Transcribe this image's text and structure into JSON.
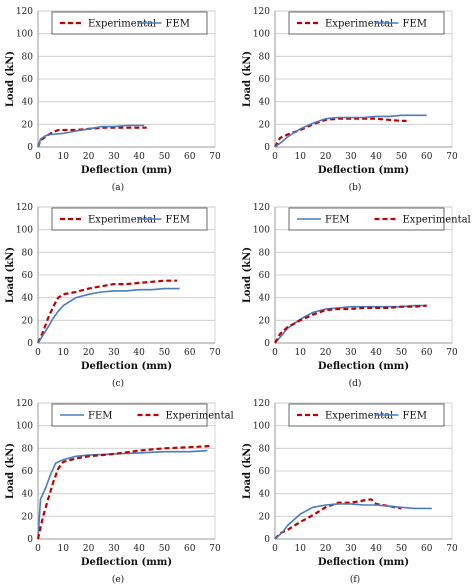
{
  "chart_data": [
    {
      "type": "line",
      "panel_label": "(a)",
      "xlabel": "Deflection  (mm)",
      "ylabel": "Load (kN)",
      "xlim": [
        0,
        70
      ],
      "ylim": [
        0,
        120
      ],
      "xticks": [
        0,
        10,
        20,
        30,
        40,
        50,
        60,
        70
      ],
      "yticks": [
        0,
        20,
        40,
        60,
        80,
        100,
        120
      ],
      "grid": "horizontal",
      "legend": "top",
      "series": [
        {
          "name": "Experimental",
          "style": "dashed",
          "color": "#c00000",
          "x": [
            0,
            1,
            3,
            5,
            8,
            10,
            15,
            20,
            25,
            30,
            35,
            40,
            43
          ],
          "y": [
            0,
            6,
            9,
            12,
            15,
            15,
            15,
            16,
            17,
            17,
            17,
            17,
            17
          ]
        },
        {
          "name": "FEM",
          "style": "solid",
          "color": "#4a7cc0",
          "x": [
            0,
            1,
            3,
            5,
            10,
            15,
            20,
            25,
            30,
            35,
            40,
            42
          ],
          "y": [
            0,
            7,
            10,
            11,
            12,
            14,
            16,
            18,
            18,
            19,
            19,
            19
          ]
        }
      ]
    },
    {
      "type": "line",
      "panel_label": "(b)",
      "xlabel": "Deflection  (mm)",
      "ylabel": "Load (kN)",
      "xlim": [
        0,
        70
      ],
      "ylim": [
        0,
        120
      ],
      "xticks": [
        0,
        10,
        20,
        30,
        40,
        50,
        60,
        70
      ],
      "yticks": [
        0,
        20,
        40,
        60,
        80,
        100,
        120
      ],
      "grid": "horizontal",
      "legend": "top",
      "series": [
        {
          "name": "Experimental",
          "style": "dashed",
          "color": "#c00000",
          "x": [
            0,
            2,
            5,
            10,
            15,
            20,
            25,
            30,
            35,
            40,
            45,
            50,
            52
          ],
          "y": [
            0,
            8,
            11,
            15,
            20,
            24,
            25,
            25,
            25,
            25,
            24,
            23,
            23
          ]
        },
        {
          "name": "FEM",
          "style": "solid",
          "color": "#4a7cc0",
          "x": [
            0,
            3,
            5,
            10,
            15,
            20,
            25,
            30,
            35,
            40,
            45,
            50,
            55,
            60
          ],
          "y": [
            0,
            5,
            9,
            16,
            21,
            25,
            26,
            26,
            26,
            27,
            27,
            28,
            28,
            28
          ]
        }
      ]
    },
    {
      "type": "line",
      "panel_label": "(c)",
      "xlabel": "Deflection  (mm)",
      "ylabel": "Load (kN)",
      "xlim": [
        0,
        70
      ],
      "ylim": [
        0,
        120
      ],
      "xticks": [
        0,
        10,
        20,
        30,
        40,
        50,
        60,
        70
      ],
      "yticks": [
        0,
        20,
        40,
        60,
        80,
        100,
        120
      ],
      "grid": "horizontal",
      "legend": "top",
      "series": [
        {
          "name": "Experimental",
          "style": "dashed",
          "color": "#c00000",
          "x": [
            0,
            2,
            4,
            6,
            8,
            10,
            15,
            20,
            25,
            30,
            35,
            40,
            45,
            50,
            55
          ],
          "y": [
            0,
            10,
            22,
            32,
            40,
            43,
            45,
            48,
            50,
            52,
            52,
            53,
            54,
            55,
            55
          ]
        },
        {
          "name": "FEM",
          "style": "solid",
          "color": "#4a7cc0",
          "x": [
            0,
            2,
            4,
            6,
            8,
            10,
            15,
            20,
            25,
            30,
            35,
            40,
            45,
            50,
            56
          ],
          "y": [
            0,
            7,
            14,
            22,
            28,
            33,
            40,
            43,
            45,
            46,
            46,
            47,
            47,
            48,
            48
          ]
        }
      ]
    },
    {
      "type": "line",
      "panel_label": "(d)",
      "xlabel": "Deflection  (mm)",
      "ylabel": "Load (kN)",
      "xlim": [
        0,
        70
      ],
      "ylim": [
        0,
        120
      ],
      "xticks": [
        0,
        10,
        20,
        30,
        40,
        50,
        60,
        70
      ],
      "yticks": [
        0,
        20,
        40,
        60,
        80,
        100,
        120
      ],
      "grid": "horizontal",
      "legend": "top",
      "series": [
        {
          "name": "FEM",
          "style": "solid",
          "color": "#4a7cc0",
          "x": [
            0,
            2,
            5,
            10,
            15,
            20,
            25,
            30,
            35,
            40,
            45,
            50,
            55,
            60
          ],
          "y": [
            0,
            5,
            13,
            21,
            27,
            30,
            31,
            32,
            32,
            32,
            32,
            32,
            33,
            33
          ]
        },
        {
          "name": "Experimental",
          "style": "dashed",
          "color": "#c00000",
          "x": [
            0,
            2,
            5,
            10,
            15,
            20,
            25,
            30,
            35,
            40,
            45,
            50,
            55,
            60
          ],
          "y": [
            0,
            8,
            14,
            20,
            25,
            29,
            30,
            30,
            31,
            31,
            31,
            32,
            32,
            33
          ]
        }
      ]
    },
    {
      "type": "line",
      "panel_label": "(e)",
      "xlabel": "Deflection  (mm)",
      "ylabel": "Load (kN)",
      "xlim": [
        0,
        70
      ],
      "ylim": [
        0,
        120
      ],
      "xticks": [
        0,
        10,
        20,
        30,
        40,
        50,
        60,
        70
      ],
      "yticks": [
        0,
        20,
        40,
        60,
        80,
        100,
        120
      ],
      "grid": "horizontal",
      "legend": "top",
      "series": [
        {
          "name": "FEM",
          "style": "solid",
          "color": "#4a7cc0",
          "x": [
            0,
            1,
            3,
            5,
            7,
            10,
            15,
            20,
            30,
            40,
            50,
            60,
            67
          ],
          "y": [
            0,
            35,
            45,
            57,
            67,
            70,
            73,
            74,
            75,
            76,
            77,
            77,
            78
          ]
        },
        {
          "name": "Experimental",
          "style": "dashed",
          "color": "#c00000",
          "x": [
            0,
            1,
            2,
            4,
            6,
            8,
            10,
            15,
            20,
            30,
            40,
            50,
            60,
            68
          ],
          "y": [
            0,
            10,
            20,
            35,
            50,
            62,
            68,
            71,
            73,
            75,
            78,
            80,
            81,
            82
          ]
        }
      ]
    },
    {
      "type": "line",
      "panel_label": "(f)",
      "xlabel": "Deflection  (mm)",
      "ylabel": "Load (kN)",
      "xlim": [
        0,
        70
      ],
      "ylim": [
        0,
        120
      ],
      "xticks": [
        0,
        10,
        20,
        30,
        40,
        50,
        60,
        70
      ],
      "yticks": [
        0,
        20,
        40,
        60,
        80,
        100,
        120
      ],
      "grid": "horizontal",
      "legend": "top",
      "series": [
        {
          "name": "Experimental",
          "style": "dashed",
          "color": "#c00000",
          "x": [
            0,
            2,
            5,
            10,
            15,
            20,
            25,
            30,
            35,
            38,
            40,
            45,
            50
          ],
          "y": [
            0,
            5,
            8,
            15,
            21,
            28,
            32,
            32,
            34,
            35,
            31,
            29,
            27
          ]
        },
        {
          "name": "FEM",
          "style": "solid",
          "color": "#4a7cc0",
          "x": [
            0,
            3,
            5,
            10,
            15,
            20,
            25,
            30,
            35,
            40,
            45,
            50,
            55,
            60,
            62
          ],
          "y": [
            0,
            6,
            12,
            22,
            28,
            30,
            31,
            31,
            30,
            30,
            29,
            28,
            27,
            27,
            27
          ]
        }
      ]
    }
  ]
}
